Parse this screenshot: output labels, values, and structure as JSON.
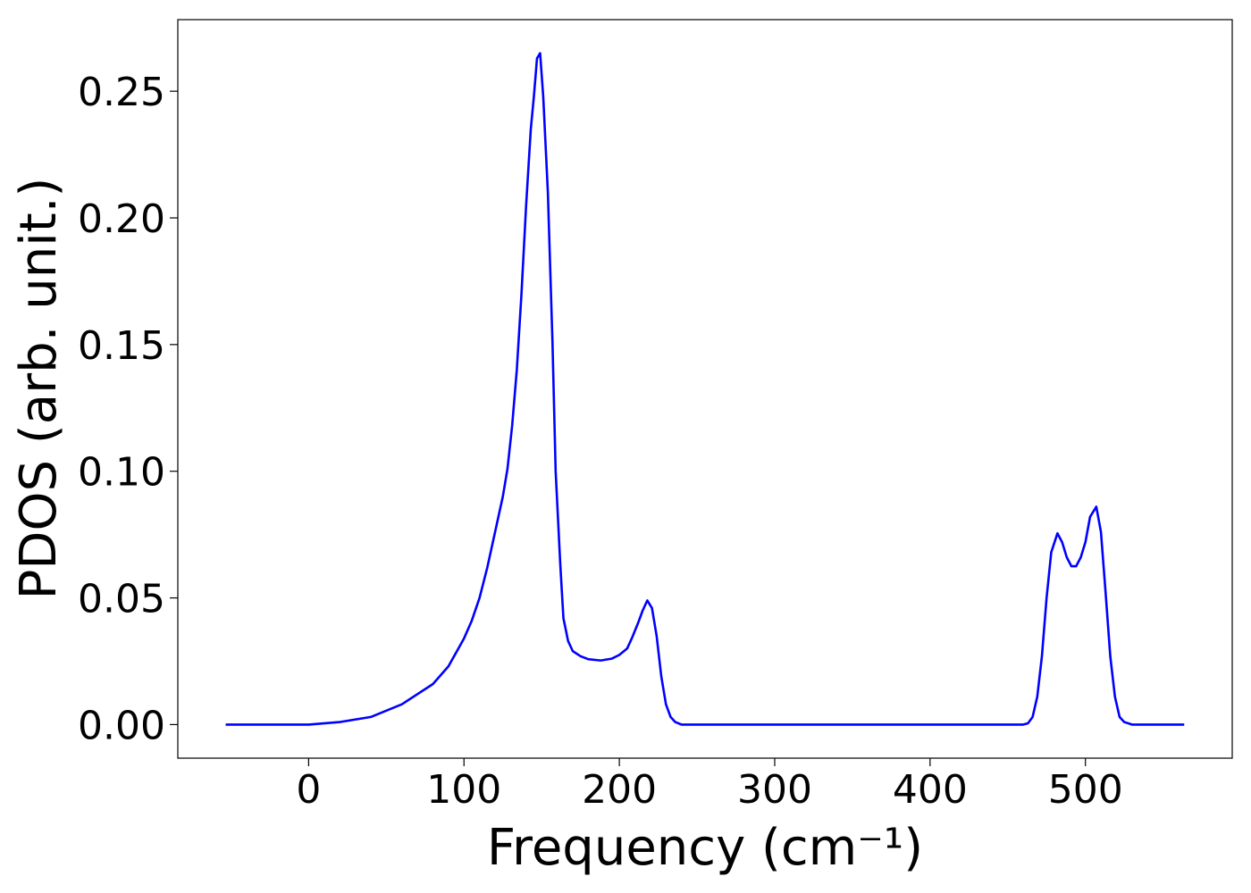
{
  "chart_data": {
    "type": "line",
    "xlabel": "Frequency (cm⁻¹)",
    "ylabel": "PDOS (arb. unit.)",
    "x": [
      -53.4,
      -20,
      0,
      20,
      40,
      60,
      80,
      90,
      100,
      105,
      110,
      115,
      120,
      125,
      128,
      131,
      134,
      137,
      140,
      143,
      145,
      147,
      149,
      151,
      154,
      157,
      159,
      162,
      164,
      167,
      170,
      175,
      180,
      188,
      195,
      200,
      205,
      208,
      212,
      215,
      218,
      221,
      224,
      227,
      230,
      233,
      236,
      240,
      300,
      400,
      460,
      463,
      466,
      469,
      472,
      475,
      478,
      482,
      485,
      488,
      491,
      494,
      497,
      500,
      503,
      507,
      510,
      513,
      516,
      519,
      522,
      525,
      530,
      563.6
    ],
    "series": [
      {
        "color": "#0000ff",
        "values": [
          0,
          0,
          0,
          0.001,
          0.003,
          0.008,
          0.016,
          0.023,
          0.034,
          0.041,
          0.05,
          0.062,
          0.076,
          0.09,
          0.101,
          0.118,
          0.14,
          0.17,
          0.205,
          0.235,
          0.248,
          0.263,
          0.265,
          0.248,
          0.21,
          0.15,
          0.1,
          0.063,
          0.042,
          0.033,
          0.029,
          0.027,
          0.0258,
          0.0253,
          0.026,
          0.0275,
          0.03,
          0.034,
          0.04,
          0.045,
          0.049,
          0.046,
          0.035,
          0.019,
          0.008,
          0.003,
          0.001,
          0,
          0,
          0,
          0,
          0.0005,
          0.003,
          0.011,
          0.027,
          0.05,
          0.068,
          0.0755,
          0.072,
          0.066,
          0.0625,
          0.0625,
          0.066,
          0.072,
          0.082,
          0.086,
          0.076,
          0.052,
          0.027,
          0.011,
          0.003,
          0.001,
          0,
          0
        ]
      }
    ],
    "xlim": [
      -84.2,
      594.5
    ],
    "ylim": [
      -0.01325,
      0.27825
    ],
    "xticks": [
      0,
      100,
      200,
      300,
      400,
      500
    ],
    "yticks": [
      {
        "value": 0,
        "label": "0.00"
      },
      0.05,
      {
        "value": 0.1,
        "label": "0.10"
      },
      0.15,
      {
        "value": 0.2,
        "label": "0.20"
      },
      0.25
    ]
  }
}
